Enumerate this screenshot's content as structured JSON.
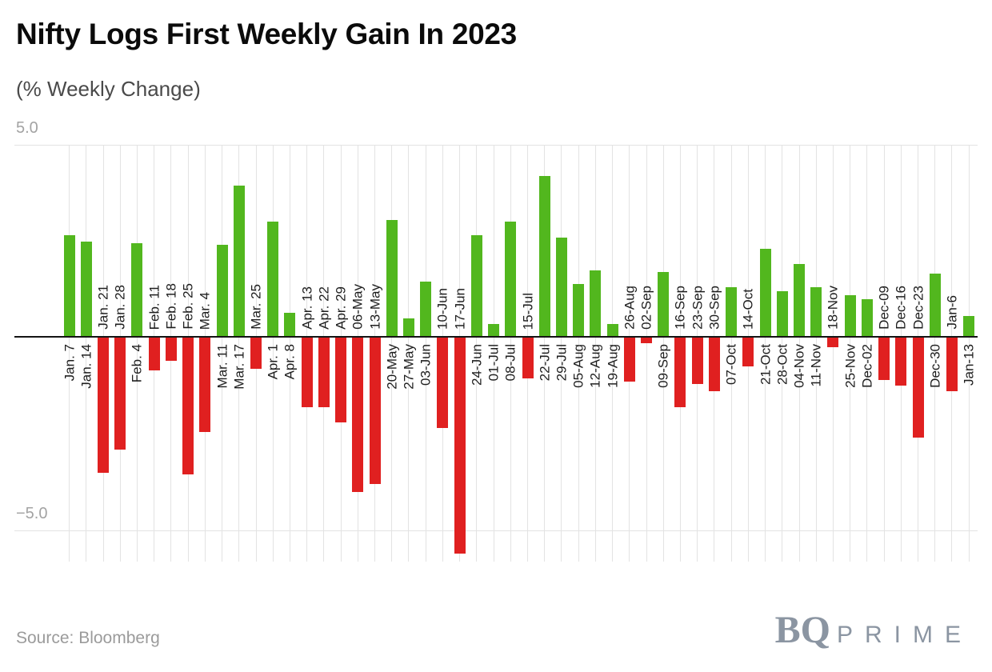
{
  "header": {
    "title": "Nifty Logs First Weekly Gain In 2023",
    "subtitle": "(% Weekly Change)"
  },
  "footer": {
    "source": "Source: Bloomberg",
    "logo_bq": "BQ",
    "logo_prime": "PRIME"
  },
  "chart_data": {
    "type": "bar",
    "title": "Nifty Logs First Weekly Gain In 2023",
    "subtitle": "(% Weekly Change)",
    "xlabel": "",
    "ylabel": "% Weekly Change",
    "ylim": [
      -5.8,
      5.0
    ],
    "yticks": [
      "5.0",
      "−5.0"
    ],
    "grid": "vertical gridline per category; horizontal gridlines at 5.0 and -5.0; black zero axis line",
    "legend": "none",
    "label_placement": "rotated 90deg; positive bars labeled below zero line, negative bars labeled above zero line",
    "colors": {
      "positive": "#52b71e",
      "negative": "#e02020",
      "gridline": "#e3e3e3",
      "zero_line": "#141414",
      "logo": "#8b95a2",
      "tick_text": "#a3a3a3",
      "label_text": "#1e1e1e"
    },
    "categories": [
      "Jan. 7",
      "Jan. 14",
      "Jan. 21",
      "Jan. 28",
      "Feb. 4",
      "Feb. 11",
      "Feb. 18",
      "Feb. 25",
      "Mar. 4",
      "Mar. 11",
      "Mar. 17",
      "Mar. 25",
      "Apr. 1",
      "Apr. 8",
      "Apr. 13",
      "Apr. 22",
      "Apr. 29",
      "06-May",
      "13-May",
      "20-May",
      "27-May",
      "03-Jun",
      "10-Jun",
      "17-Jun",
      "24-Jun",
      "01-Jul",
      "08-Jul",
      "15-Jul",
      "22-Jul",
      "29-Jul",
      "05-Aug",
      "12-Aug",
      "19-Aug",
      "26-Aug",
      "02-Sep",
      "09-Sep",
      "16-Sep",
      "23-Sep",
      "30-Sep",
      "07-Oct",
      "14-Oct",
      "21-Oct",
      "28-Oct",
      "04-Nov",
      "11-Nov",
      "18-Nov",
      "25-Nov",
      "Dec-02",
      "Dec-09",
      "Dec-16",
      "Dec-23",
      "Dec-30",
      "Jan-6",
      "Jan-13"
    ],
    "values": [
      2.65,
      2.5,
      -3.5,
      -2.9,
      2.45,
      -0.85,
      -0.6,
      -3.55,
      -2.45,
      2.4,
      3.95,
      -0.8,
      3.0,
      0.65,
      -1.8,
      -1.8,
      -2.2,
      -4.0,
      -3.8,
      3.05,
      0.5,
      1.45,
      -2.35,
      -5.6,
      2.65,
      0.35,
      3.0,
      -1.05,
      4.2,
      2.6,
      1.4,
      1.75,
      0.35,
      -1.15,
      -0.15,
      1.7,
      -1.8,
      -1.2,
      -1.4,
      1.3,
      -0.75,
      2.3,
      1.2,
      1.9,
      1.3,
      -0.25,
      1.1,
      1.0,
      -1.1,
      -1.25,
      -2.6,
      1.65,
      -1.4,
      0.55
    ]
  }
}
